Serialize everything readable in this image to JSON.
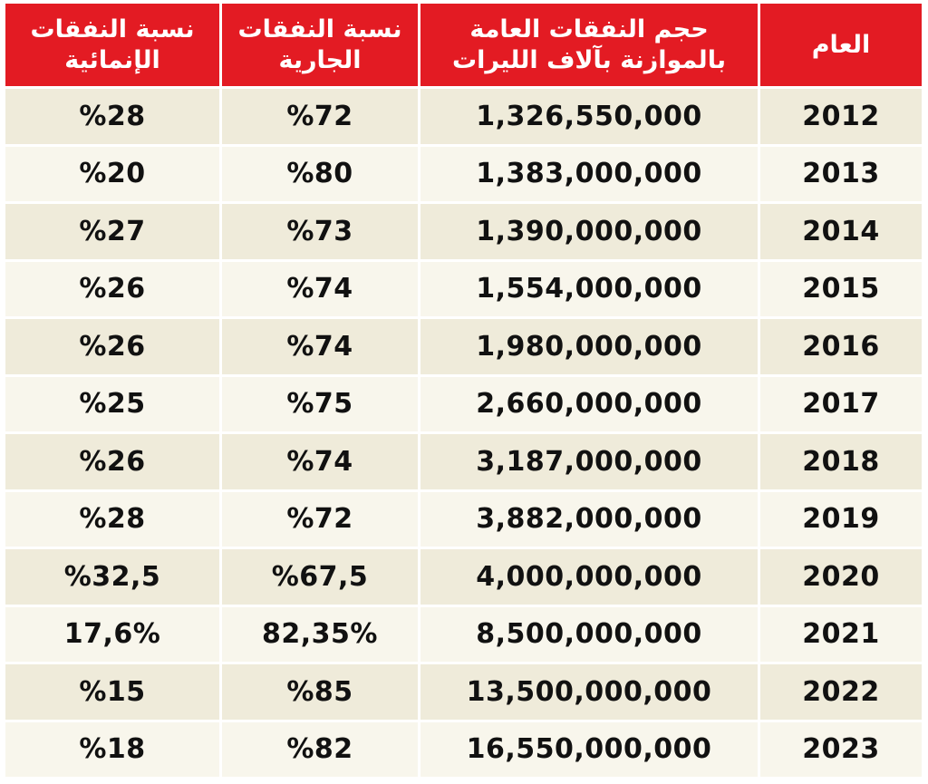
{
  "table": {
    "headers": {
      "capital_ratio": [
        "نسبة النفقات",
        "الإنمائية"
      ],
      "current_ratio": [
        "نسبة النفقات",
        "الجارية"
      ],
      "total_volume": [
        "حجم النفقات العامة",
        "بالموازنة بآلاف الليرات"
      ],
      "year": [
        "العام"
      ]
    },
    "rows": [
      {
        "capital": "%28",
        "current": "%72",
        "total": "1,326,550,000",
        "year": "2012"
      },
      {
        "capital": "%20",
        "current": "%80",
        "total": "1,383,000,000",
        "year": "2013"
      },
      {
        "capital": "%27",
        "current": "%73",
        "total": "1,390,000,000",
        "year": "2014"
      },
      {
        "capital": "%26",
        "current": "%74",
        "total": "1,554,000,000",
        "year": "2015"
      },
      {
        "capital": "%26",
        "current": "%74",
        "total": "1,980,000,000",
        "year": "2016"
      },
      {
        "capital": "%25",
        "current": "%75",
        "total": "2,660,000,000",
        "year": "2017"
      },
      {
        "capital": "%26",
        "current": "%74",
        "total": "3,187,000,000",
        "year": "2018"
      },
      {
        "capital": "%28",
        "current": "%72",
        "total": "3,882,000,000",
        "year": "2019"
      },
      {
        "capital": "%32,5",
        "current": "%67,5",
        "total": "4,000,000,000",
        "year": "2020"
      },
      {
        "capital": "17,6%",
        "current": "82,35%",
        "total": "8,500,000,000",
        "year": "2021"
      },
      {
        "capital": "%15",
        "current": "%85",
        "total": "13,500,000,000",
        "year": "2022"
      },
      {
        "capital": "%18",
        "current": "%82",
        "total": "16,550,000,000",
        "year": "2023"
      }
    ]
  },
  "colors": {
    "header_bg": "#e31b23",
    "header_text": "#ffffff",
    "row_odd_bg": "#efebda",
    "row_even_bg": "#f8f6ec",
    "body_text": "#111111"
  }
}
